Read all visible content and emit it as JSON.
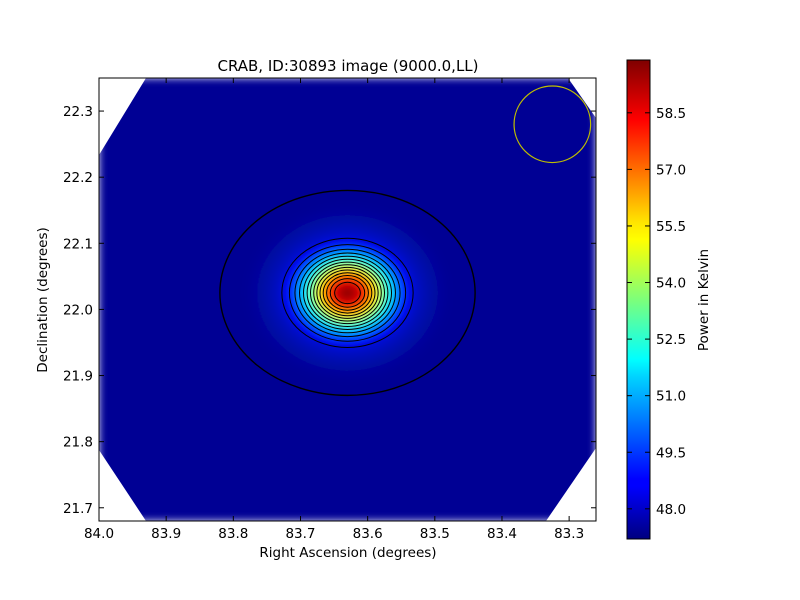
{
  "chart_data": {
    "type": "heatmap",
    "title": "CRAB, ID:30893 image (9000.0,LL)",
    "xlabel": "Right Ascension (degrees)",
    "ylabel": "Declination (degrees)",
    "xlim": [
      84.0,
      83.26
    ],
    "ylim": [
      21.68,
      22.35
    ],
    "x_ticks": [
      84.0,
      83.9,
      83.8,
      83.7,
      83.6,
      83.5,
      83.4,
      83.3
    ],
    "x_tick_labels": [
      "84.0",
      "83.9",
      "83.8",
      "83.7",
      "83.6",
      "83.5",
      "83.4",
      "83.3"
    ],
    "y_ticks": [
      21.7,
      21.8,
      21.9,
      22.0,
      22.1,
      22.2,
      22.3
    ],
    "y_tick_labels": [
      "21.7",
      "21.8",
      "21.9",
      "22.0",
      "22.1",
      "22.2",
      "22.3"
    ],
    "colormap": "jet",
    "grid": false,
    "colorbar": {
      "label": "Power in Kelvin",
      "range": [
        47.2,
        59.9
      ],
      "ticks": [
        48.0,
        49.5,
        51.0,
        52.5,
        54.0,
        55.5,
        57.0,
        58.5
      ],
      "tick_labels": [
        "48.0",
        "49.5",
        "51.0",
        "52.5",
        "54.0",
        "55.5",
        "57.0",
        "58.5"
      ]
    },
    "source": {
      "center_ra": 83.63,
      "center_dec": 22.025,
      "peak_kelvin": 59.9,
      "background_kelvin": 47.2
    },
    "contours": {
      "color": "#000000",
      "levels": [
        47.6,
        48.4,
        49.2,
        50.0,
        50.8,
        51.6,
        52.4,
        53.2,
        54.0,
        54.8,
        55.6,
        56.4,
        57.2,
        58.0,
        58.8
      ]
    },
    "beam_circle": {
      "ra": 83.325,
      "dec": 22.28,
      "radius_deg": 0.057,
      "color": "#bfbf00"
    }
  }
}
